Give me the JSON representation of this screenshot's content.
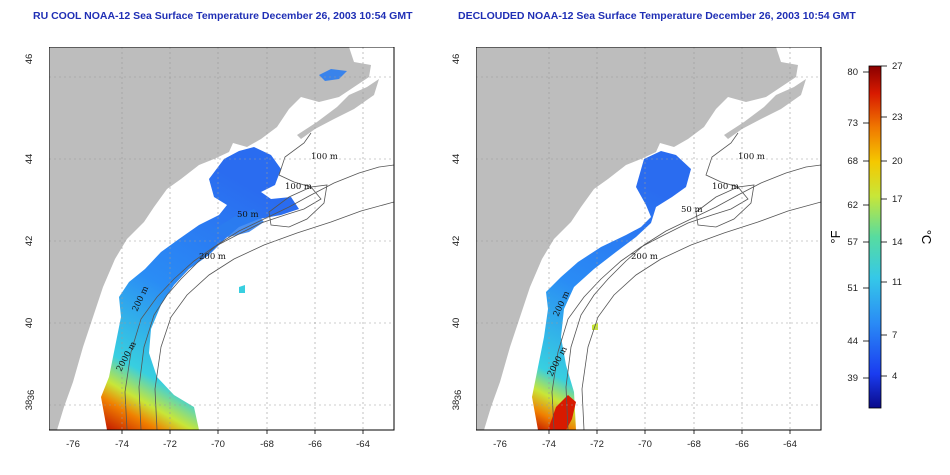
{
  "panels": [
    {
      "title": "RU COOL NOAA-12 Sea Surface Temperature December 26, 2003 10:54 GMT",
      "x_ticks": [
        "-76",
        "-74",
        "-72",
        "-70",
        "-68",
        "-66",
        "-64"
      ],
      "y_ticks": [
        "36",
        "38",
        "40",
        "42",
        "44",
        "46"
      ],
      "contour_labels": [
        "100 m",
        "100 m",
        "50 m",
        "200 m",
        "200 m",
        "2000 m"
      ]
    },
    {
      "title": "DECLOUDED NOAA-12 Sea Surface Temperature December 26, 2003 10:54 GMT",
      "x_ticks": [
        "-76",
        "-74",
        "-72",
        "-70",
        "-68",
        "-66",
        "-64"
      ],
      "y_ticks": [
        "36",
        "38",
        "40",
        "42",
        "44",
        "46"
      ],
      "contour_labels": [
        "100 m",
        "100 m",
        "50 m",
        "200 m",
        "200 m",
        "2000 m"
      ]
    }
  ],
  "colorbar": {
    "f_label": "°F",
    "c_label": "°C",
    "f_ticks": [
      "80",
      "73",
      "68",
      "62",
      "57",
      "51",
      "44",
      "39"
    ],
    "c_ticks": [
      "27",
      "23",
      "20",
      "17",
      "14",
      "11",
      "7",
      "4"
    ],
    "colors": [
      "#0a0a8a",
      "#1a3cf0",
      "#2a8cf5",
      "#35c8e8",
      "#57dca0",
      "#c8e638",
      "#f5c800",
      "#f07800",
      "#d81a00",
      "#8a0000"
    ]
  }
}
